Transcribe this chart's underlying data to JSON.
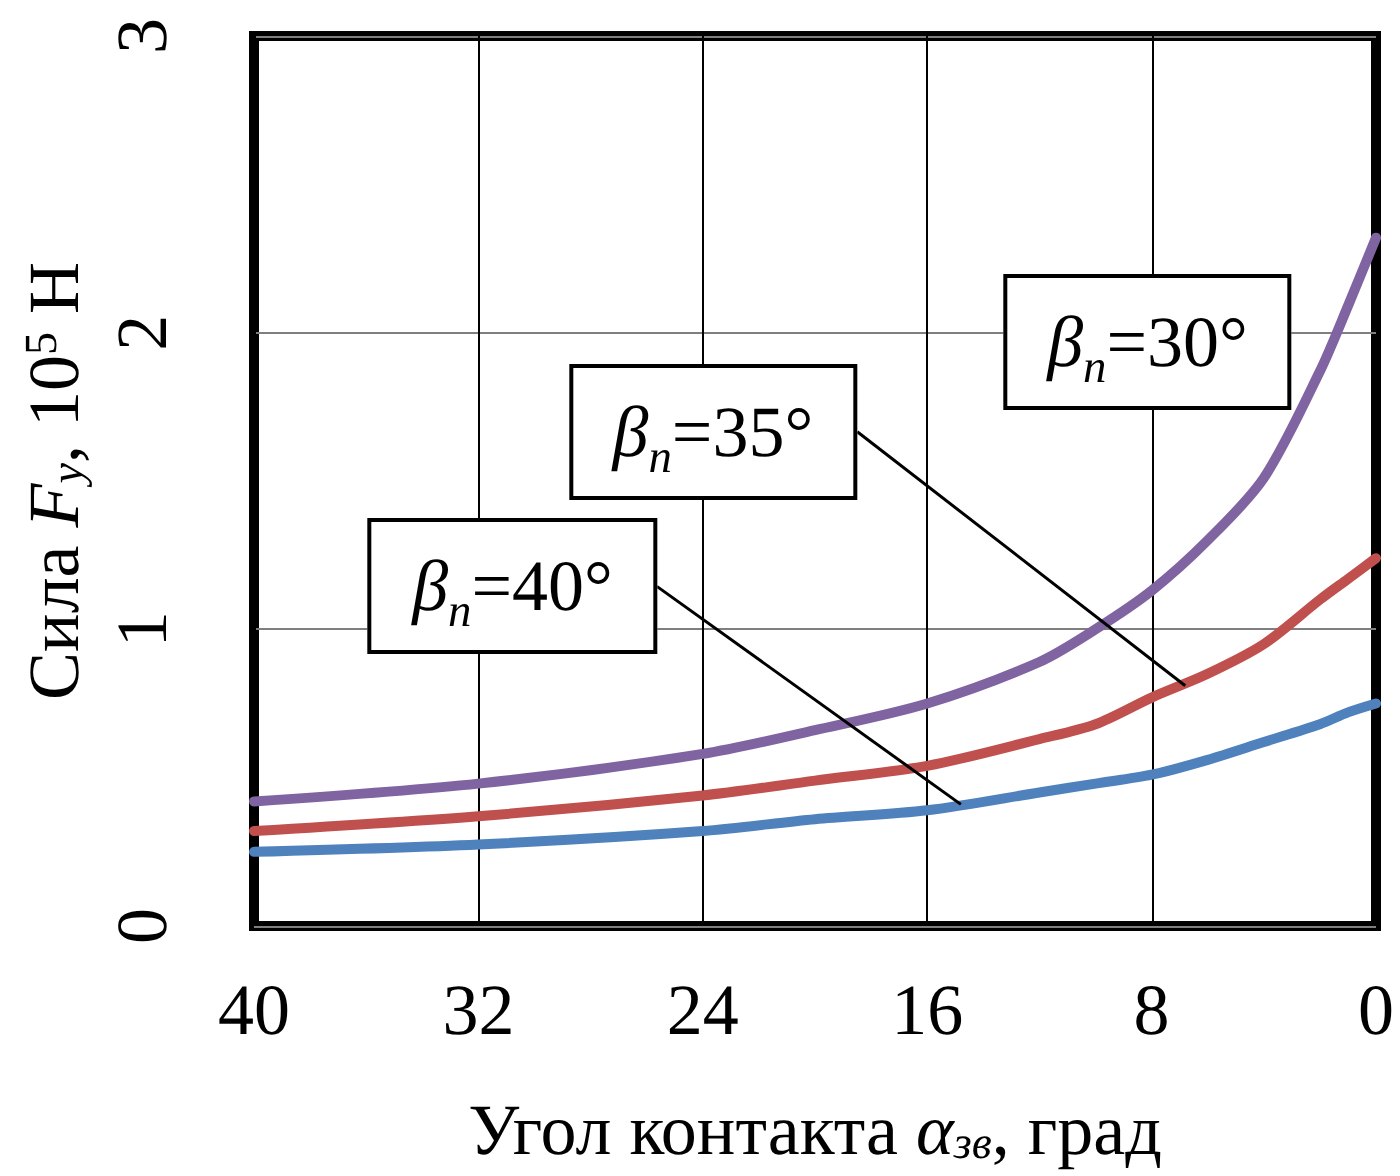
{
  "chart_data": {
    "type": "line",
    "xlabel": "Угол контакта α$_{зв}$, град",
    "ylabel": "Сила F$_{y}$, 10$^{5}$ Н",
    "xlim": [
      40,
      0
    ],
    "xticks": [
      40,
      32,
      24,
      16,
      8,
      0
    ],
    "ylim": [
      0,
      3
    ],
    "yticks": [
      0,
      1,
      2,
      3
    ],
    "grid": true,
    "line_style": "solid",
    "x": [
      40,
      32,
      24,
      20,
      16,
      12,
      10,
      8,
      6,
      4,
      2,
      1,
      0
    ],
    "series": [
      {
        "color": "#8064a2",
        "values": [
          0.42,
          0.48,
          0.58,
          0.66,
          0.75,
          0.89,
          1.0,
          1.13,
          1.3,
          1.51,
          1.87,
          2.09,
          2.32
        ]
      },
      {
        "color": "#c0504d",
        "values": [
          0.32,
          0.37,
          0.44,
          0.49,
          0.54,
          0.63,
          0.68,
          0.77,
          0.85,
          0.95,
          1.1,
          1.17,
          1.24
        ]
      },
      {
        "color": "#4f81bd",
        "values": [
          0.25,
          0.275,
          0.32,
          0.36,
          0.39,
          0.45,
          0.48,
          0.51,
          0.56,
          0.62,
          0.68,
          0.72,
          0.75
        ]
      }
    ],
    "annotations": [
      {
        "text": "β$_{n}$=30°",
        "x": 3,
        "y": 1.68
      },
      {
        "text": "β$_{n}$=35°",
        "x": 6.8,
        "y": 0.81
      },
      {
        "text": "β$_{n}$=40°",
        "x": 14.8,
        "y": 0.41
      }
    ]
  }
}
